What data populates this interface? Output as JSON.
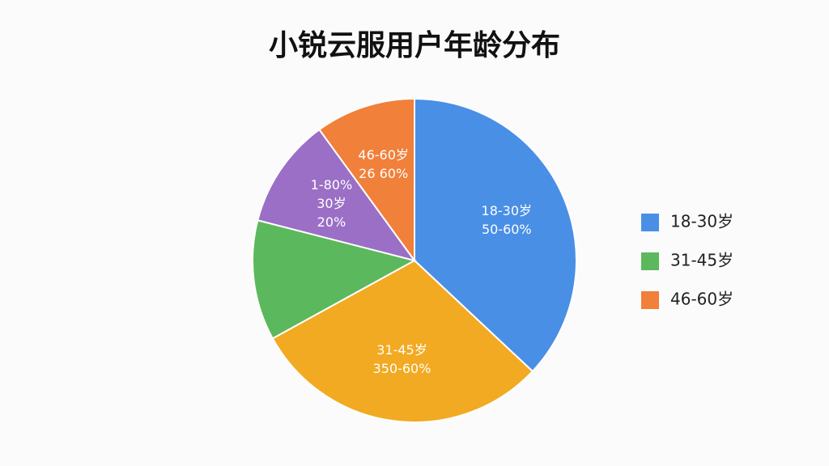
{
  "chart_data": {
    "type": "pie",
    "title": "小锐云服用户年龄分布",
    "values": [
      37,
      30,
      12,
      11,
      10
    ],
    "colors": [
      "#4a8fe6",
      "#f2aa22",
      "#5cb85c",
      "#9b6fc6",
      "#f0803a"
    ],
    "slice_labels": [
      [
        "18-30岁",
        "50-60%"
      ],
      [
        "31-45岁",
        "350-60%"
      ],
      null,
      [
        "1-80%",
        "30岁",
        "20%"
      ],
      [
        "46-60岁",
        "26 60%"
      ]
    ],
    "legend": [
      {
        "name": "18-30岁",
        "color": "#4a8fe6"
      },
      {
        "name": "31-45岁",
        "color": "#5cb85c"
      },
      {
        "name": "46-60岁",
        "color": "#f0803a"
      }
    ]
  }
}
